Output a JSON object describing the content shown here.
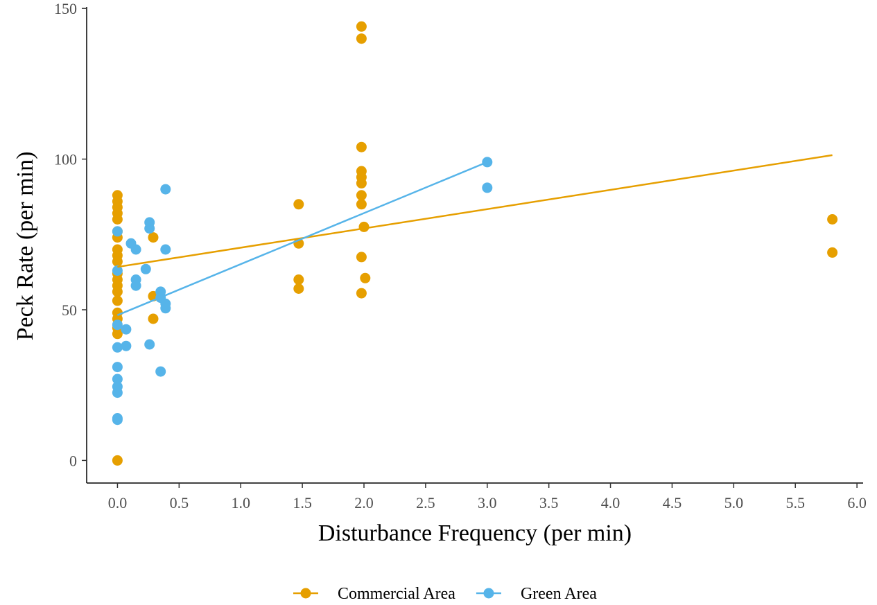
{
  "chart_data": {
    "type": "scatter",
    "title": "",
    "xlabel": "Disturbance Frequency (per min)",
    "ylabel": "Peck Rate (per min)",
    "xlim": [
      -0.25,
      6.05
    ],
    "ylim": [
      -7.5,
      150.5
    ],
    "x_ticks": [
      "0.0",
      "0.5",
      "1.0",
      "1.5",
      "2.0",
      "2.5",
      "3.0",
      "3.5",
      "4.0",
      "4.5",
      "5.0",
      "5.5",
      "6.0"
    ],
    "y_ticks": [
      "0",
      "50",
      "100",
      "150"
    ],
    "grid": false,
    "legend_position": "bottom",
    "series": [
      {
        "name": "Commercial Area",
        "color": "#E69F00",
        "points": [
          [
            0,
            88
          ],
          [
            0,
            86
          ],
          [
            0,
            84
          ],
          [
            0,
            82
          ],
          [
            0,
            80
          ],
          [
            0,
            76
          ],
          [
            0,
            74
          ],
          [
            0,
            70
          ],
          [
            0,
            68
          ],
          [
            0,
            66
          ],
          [
            0,
            62
          ],
          [
            0,
            60
          ],
          [
            0,
            58
          ],
          [
            0,
            56
          ],
          [
            0,
            53
          ],
          [
            0,
            49
          ],
          [
            0,
            47
          ],
          [
            0,
            44
          ],
          [
            0,
            42
          ],
          [
            0,
            0
          ],
          [
            0.29,
            74
          ],
          [
            0.29,
            54.5
          ],
          [
            0.29,
            47
          ],
          [
            1.47,
            85
          ],
          [
            1.47,
            72
          ],
          [
            1.47,
            60
          ],
          [
            1.47,
            57
          ],
          [
            1.98,
            144
          ],
          [
            1.98,
            140
          ],
          [
            1.98,
            104
          ],
          [
            1.98,
            96
          ],
          [
            1.98,
            94
          ],
          [
            1.98,
            92
          ],
          [
            1.98,
            88
          ],
          [
            1.98,
            85
          ],
          [
            2.0,
            77.5
          ],
          [
            1.98,
            67.5
          ],
          [
            2.01,
            60.5
          ],
          [
            1.98,
            55.5
          ],
          [
            5.8,
            80
          ],
          [
            5.8,
            69
          ]
        ],
        "trend": [
          [
            0,
            64.2
          ],
          [
            5.8,
            101.3
          ]
        ]
      },
      {
        "name": "Green Area",
        "color": "#56B4E9",
        "points": [
          [
            0,
            76
          ],
          [
            0,
            63
          ],
          [
            0,
            45
          ],
          [
            0,
            37.5
          ],
          [
            0,
            31
          ],
          [
            0,
            27
          ],
          [
            0,
            24.5
          ],
          [
            0,
            22.5
          ],
          [
            0,
            14
          ],
          [
            0,
            13.5
          ],
          [
            0.07,
            43.5
          ],
          [
            0.07,
            38
          ],
          [
            0.11,
            72
          ],
          [
            0.15,
            70
          ],
          [
            0.15,
            60
          ],
          [
            0.15,
            58
          ],
          [
            0.23,
            63.5
          ],
          [
            0.26,
            79
          ],
          [
            0.26,
            77
          ],
          [
            0.26,
            38.5
          ],
          [
            0.35,
            56
          ],
          [
            0.35,
            54
          ],
          [
            0.35,
            29.5
          ],
          [
            0.39,
            90
          ],
          [
            0.39,
            70
          ],
          [
            0.39,
            52
          ],
          [
            0.39,
            50.5
          ],
          [
            3.0,
            99
          ],
          [
            3.0,
            90.5
          ]
        ],
        "trend": [
          [
            0,
            48.2
          ],
          [
            3.0,
            99
          ]
        ]
      }
    ]
  }
}
